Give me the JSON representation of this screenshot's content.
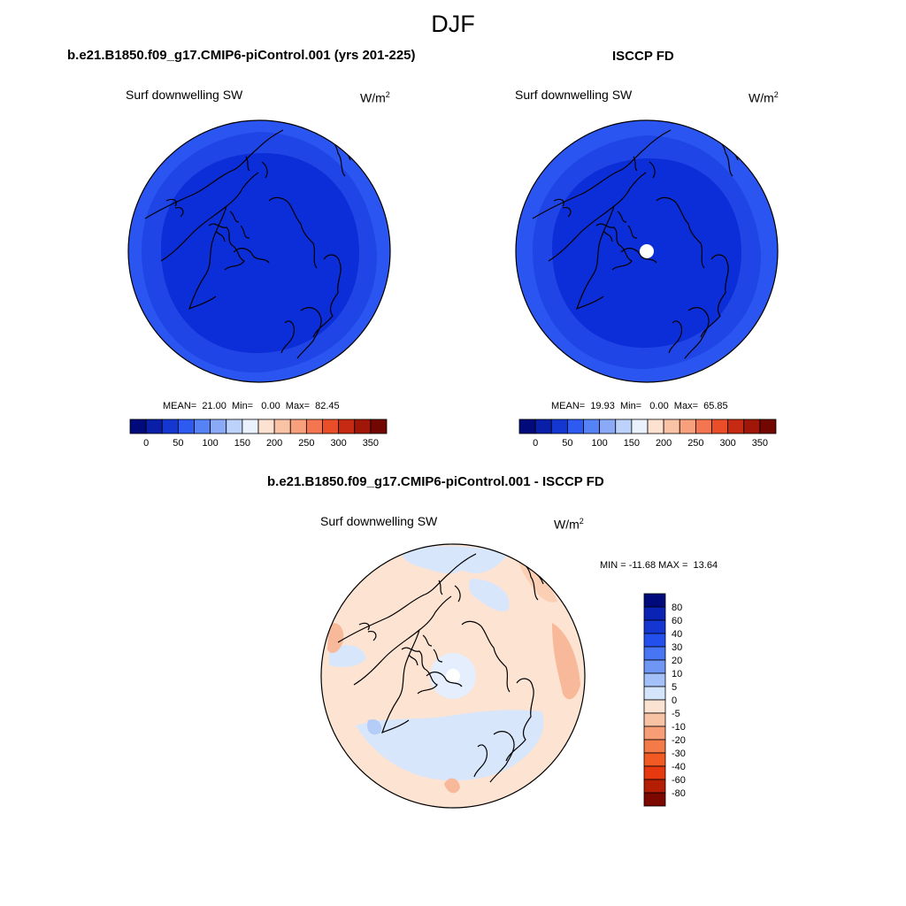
{
  "season": "DJF",
  "panels": [
    {
      "title": "b.e21.B1850.f09_g17.CMIP6-piControl.001 (yrs 201-225)",
      "variable": "Surf downwelling SW",
      "units_base": "W/m",
      "units_exp": "2",
      "stats": "MEAN=  21.00  Min=   0.00  Max=  82.45"
    },
    {
      "title": "ISCCP FD",
      "variable": "Surf downwelling SW",
      "units_base": "W/m",
      "units_exp": "2",
      "stats": "MEAN=  19.93  Min=   0.00  Max=  65.85"
    },
    {
      "title": "b.e21.B1850.f09_g17.CMIP6-piControl.001 - ISCCP FD",
      "variable": "Surf downwelling SW",
      "units_base": "W/m",
      "units_exp": "2",
      "stats": "MIN = -11.68 MAX =  13.64"
    }
  ],
  "colorbar_abs": {
    "colors": [
      "#000a7a",
      "#0a1fa8",
      "#1437d2",
      "#2d5af0",
      "#5582f5",
      "#8aaaf7",
      "#bcd2fb",
      "#e9f1fc",
      "#fde2d2",
      "#fbc3a6",
      "#f8a07c",
      "#f47650",
      "#ea4e28",
      "#c72a12",
      "#a01608",
      "#720600"
    ],
    "tick_labels": [
      "0",
      "50",
      "100",
      "150",
      "200",
      "250",
      "300",
      "350"
    ]
  },
  "colorbar_diff": {
    "colors": [
      "#000a7a",
      "#0a23b4",
      "#1437d2",
      "#2350ec",
      "#4775f3",
      "#6f96f5",
      "#a4c0f8",
      "#d4e4fb",
      "#fbe3d2",
      "#f8c3a5",
      "#f79e76",
      "#f47a48",
      "#f25a23",
      "#e6390f",
      "#b41e05",
      "#7c0800"
    ],
    "tick_labels": [
      "80",
      "60",
      "40",
      "30",
      "20",
      "10",
      "5",
      "0",
      "-5",
      "-10",
      "-20",
      "-30",
      "-40",
      "-60",
      "-80"
    ]
  },
  "map_colors": {
    "outer_ring": "#2b55f0",
    "middle_ring": "#1f45e6",
    "inner_core": "#0c2ed8",
    "diff_base": "#fde3d2",
    "diff_negative": "#d8e6fb",
    "diff_positive": "#f8b99a",
    "coast": "#000000"
  }
}
